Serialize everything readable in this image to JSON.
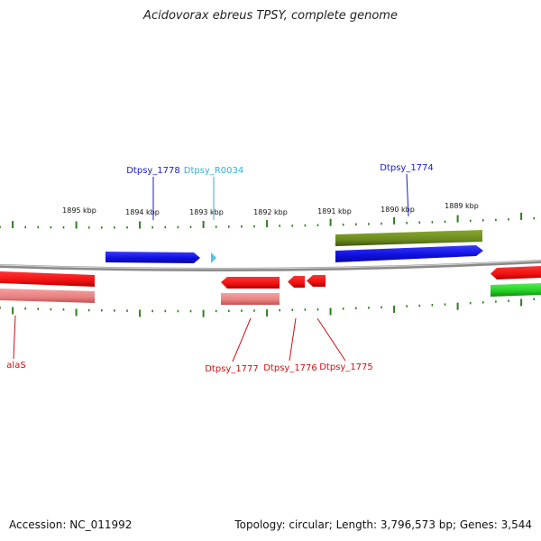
{
  "title": "Acidovorax ebreus TPSY, complete genome",
  "footer": {
    "accession": "Accession: NC_011992",
    "topology": "Topology: circular; Length: 3,796,573 bp; Genes: 3,544"
  },
  "scale_ticks": [
    "1895 kbp",
    "1894 kbp",
    "1893 kbp",
    "1892 kbp",
    "1891 kbp",
    "1890 kbp",
    "1889 kbp"
  ],
  "gene_labels": {
    "top": [
      "Dtpsy_1778",
      "Dtpsy_R0034",
      "Dtpsy_1774"
    ],
    "bottom": [
      "alaS",
      "Dtpsy_1777",
      "Dtpsy_1776",
      "Dtpsy_1775"
    ]
  },
  "colors": {
    "backbone": "#8a8a8a",
    "tick": "#2f7d1f",
    "blue_gene": "#1010e0",
    "cyan_gene": "#4fc6e8",
    "red_gene": "#ee1111",
    "pink_gene": "#ee8080",
    "olive_gene": "#6b8a20",
    "green_gene": "#22cc22",
    "label_blue": "#1a1ac8",
    "label_cyan": "#2fb2d6",
    "label_red": "#cc1010"
  }
}
